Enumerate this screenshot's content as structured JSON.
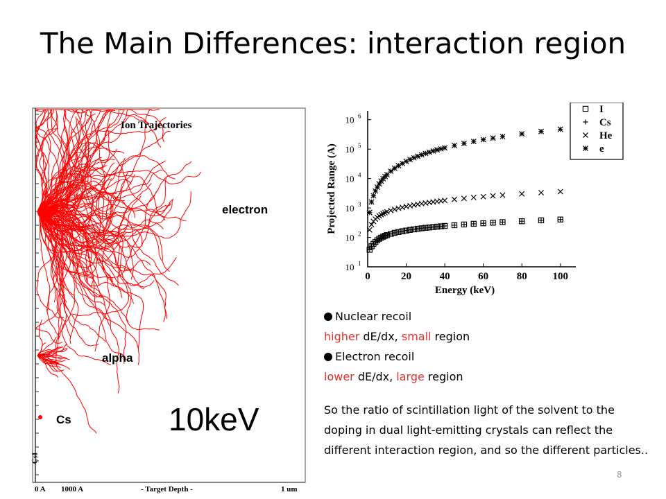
{
  "slide": {
    "title": "The Main Differences: interaction region",
    "page_number": "8"
  },
  "trim": {
    "header": "Ion Trajectories",
    "labels": {
      "electron": "electron",
      "alpha": "alpha",
      "cs": "Cs",
      "vertical": "CsI"
    },
    "energy": "10keV",
    "axis": {
      "start": "0 A",
      "mark": "1000 A",
      "middle": "- Target Depth -",
      "end": "1 um"
    }
  },
  "notes": {
    "nuclear_title": "Nuclear recoil",
    "nuclear_parts": [
      "higher",
      " dE/dx, ",
      "small",
      " region"
    ],
    "electron_title": "Electron recoil",
    "electron_parts": [
      "lower",
      " dE/dx,  ",
      "large",
      " region"
    ]
  },
  "paragraph": "So the ratio of scintillation light of the solvent to the doping in dual light-emitting crystals can reflect the different interaction region, and so the different particles..",
  "chart_data": {
    "type": "scatter",
    "xlabel": "Energy (keV)",
    "ylabel": "Projected Range (A)",
    "x_ticks": [
      "0",
      "20",
      "40",
      "60",
      "80",
      "100"
    ],
    "y_ticks": [
      "10",
      "10",
      "10",
      "10",
      "10",
      "10"
    ],
    "y_tick_exponents": [
      "1",
      "2",
      "3",
      "4",
      "5",
      "6"
    ],
    "xlim": [
      0,
      108
    ],
    "ylim_log10": [
      1,
      6.3
    ],
    "log_y": true,
    "legend_position": "top-right",
    "series": [
      {
        "name": "I",
        "marker": "square",
        "x": [
          1,
          2,
          3,
          4,
          5,
          6,
          7,
          8,
          9,
          10,
          12,
          14,
          16,
          18,
          20,
          22,
          24,
          26,
          28,
          30,
          32,
          34,
          36,
          38,
          40,
          45,
          50,
          55,
          60,
          65,
          70,
          80,
          90,
          100
        ],
        "y": [
          38,
          50,
          60,
          70,
          80,
          90,
          98,
          106,
          113,
          120,
          132,
          143,
          153,
          162,
          171,
          180,
          188,
          196,
          204,
          211,
          218,
          225,
          232,
          238,
          245,
          260,
          275,
          290,
          303,
          316,
          330,
          355,
          380,
          405
        ]
      },
      {
        "name": "Cs",
        "marker": "plus",
        "x": [
          1,
          2,
          3,
          4,
          5,
          6,
          7,
          8,
          9,
          10,
          12,
          14,
          16,
          18,
          20,
          22,
          24,
          26,
          28,
          30,
          32,
          34,
          36,
          38,
          40,
          45,
          50,
          55,
          60,
          65,
          70,
          80,
          90,
          100
        ],
        "y": [
          38,
          50,
          60,
          70,
          80,
          90,
          98,
          106,
          113,
          120,
          132,
          143,
          153,
          162,
          171,
          180,
          188,
          196,
          204,
          211,
          218,
          225,
          232,
          238,
          245,
          260,
          275,
          290,
          303,
          316,
          330,
          355,
          380,
          405
        ]
      },
      {
        "name": "He",
        "marker": "x",
        "x": [
          1,
          2,
          3,
          4,
          5,
          6,
          7,
          8,
          9,
          10,
          12,
          14,
          16,
          18,
          20,
          22,
          24,
          26,
          28,
          30,
          32,
          34,
          36,
          38,
          40,
          45,
          50,
          55,
          60,
          65,
          70,
          80,
          90,
          100
        ],
        "y": [
          180,
          270,
          350,
          420,
          480,
          540,
          590,
          640,
          690,
          740,
          820,
          900,
          980,
          1050,
          1120,
          1190,
          1260,
          1330,
          1400,
          1470,
          1540,
          1600,
          1670,
          1740,
          1800,
          1960,
          2120,
          2280,
          2430,
          2580,
          2730,
          3030,
          3320,
          3600
        ]
      },
      {
        "name": "e",
        "marker": "asterisk",
        "x": [
          1,
          2,
          3,
          4,
          5,
          6,
          7,
          8,
          9,
          10,
          12,
          14,
          16,
          18,
          20,
          22,
          24,
          26,
          28,
          30,
          32,
          34,
          36,
          38,
          40,
          45,
          50,
          55,
          60,
          65,
          70,
          80,
          90,
          100
        ],
        "y": [
          700,
          1600,
          2600,
          3800,
          5100,
          6600,
          8200,
          9900,
          11700,
          13600,
          17800,
          22400,
          27400,
          32700,
          38400,
          44400,
          50700,
          57300,
          64200,
          71400,
          78800,
          86500,
          94400,
          102500,
          110800,
          133000,
          157000,
          183000,
          210000,
          238000,
          268000,
          331000,
          399000,
          472000
        ]
      }
    ]
  },
  "colors": {
    "trajectory": "#ff0000",
    "note_red": "#e03030",
    "ion_title": "#1c2b8c"
  }
}
